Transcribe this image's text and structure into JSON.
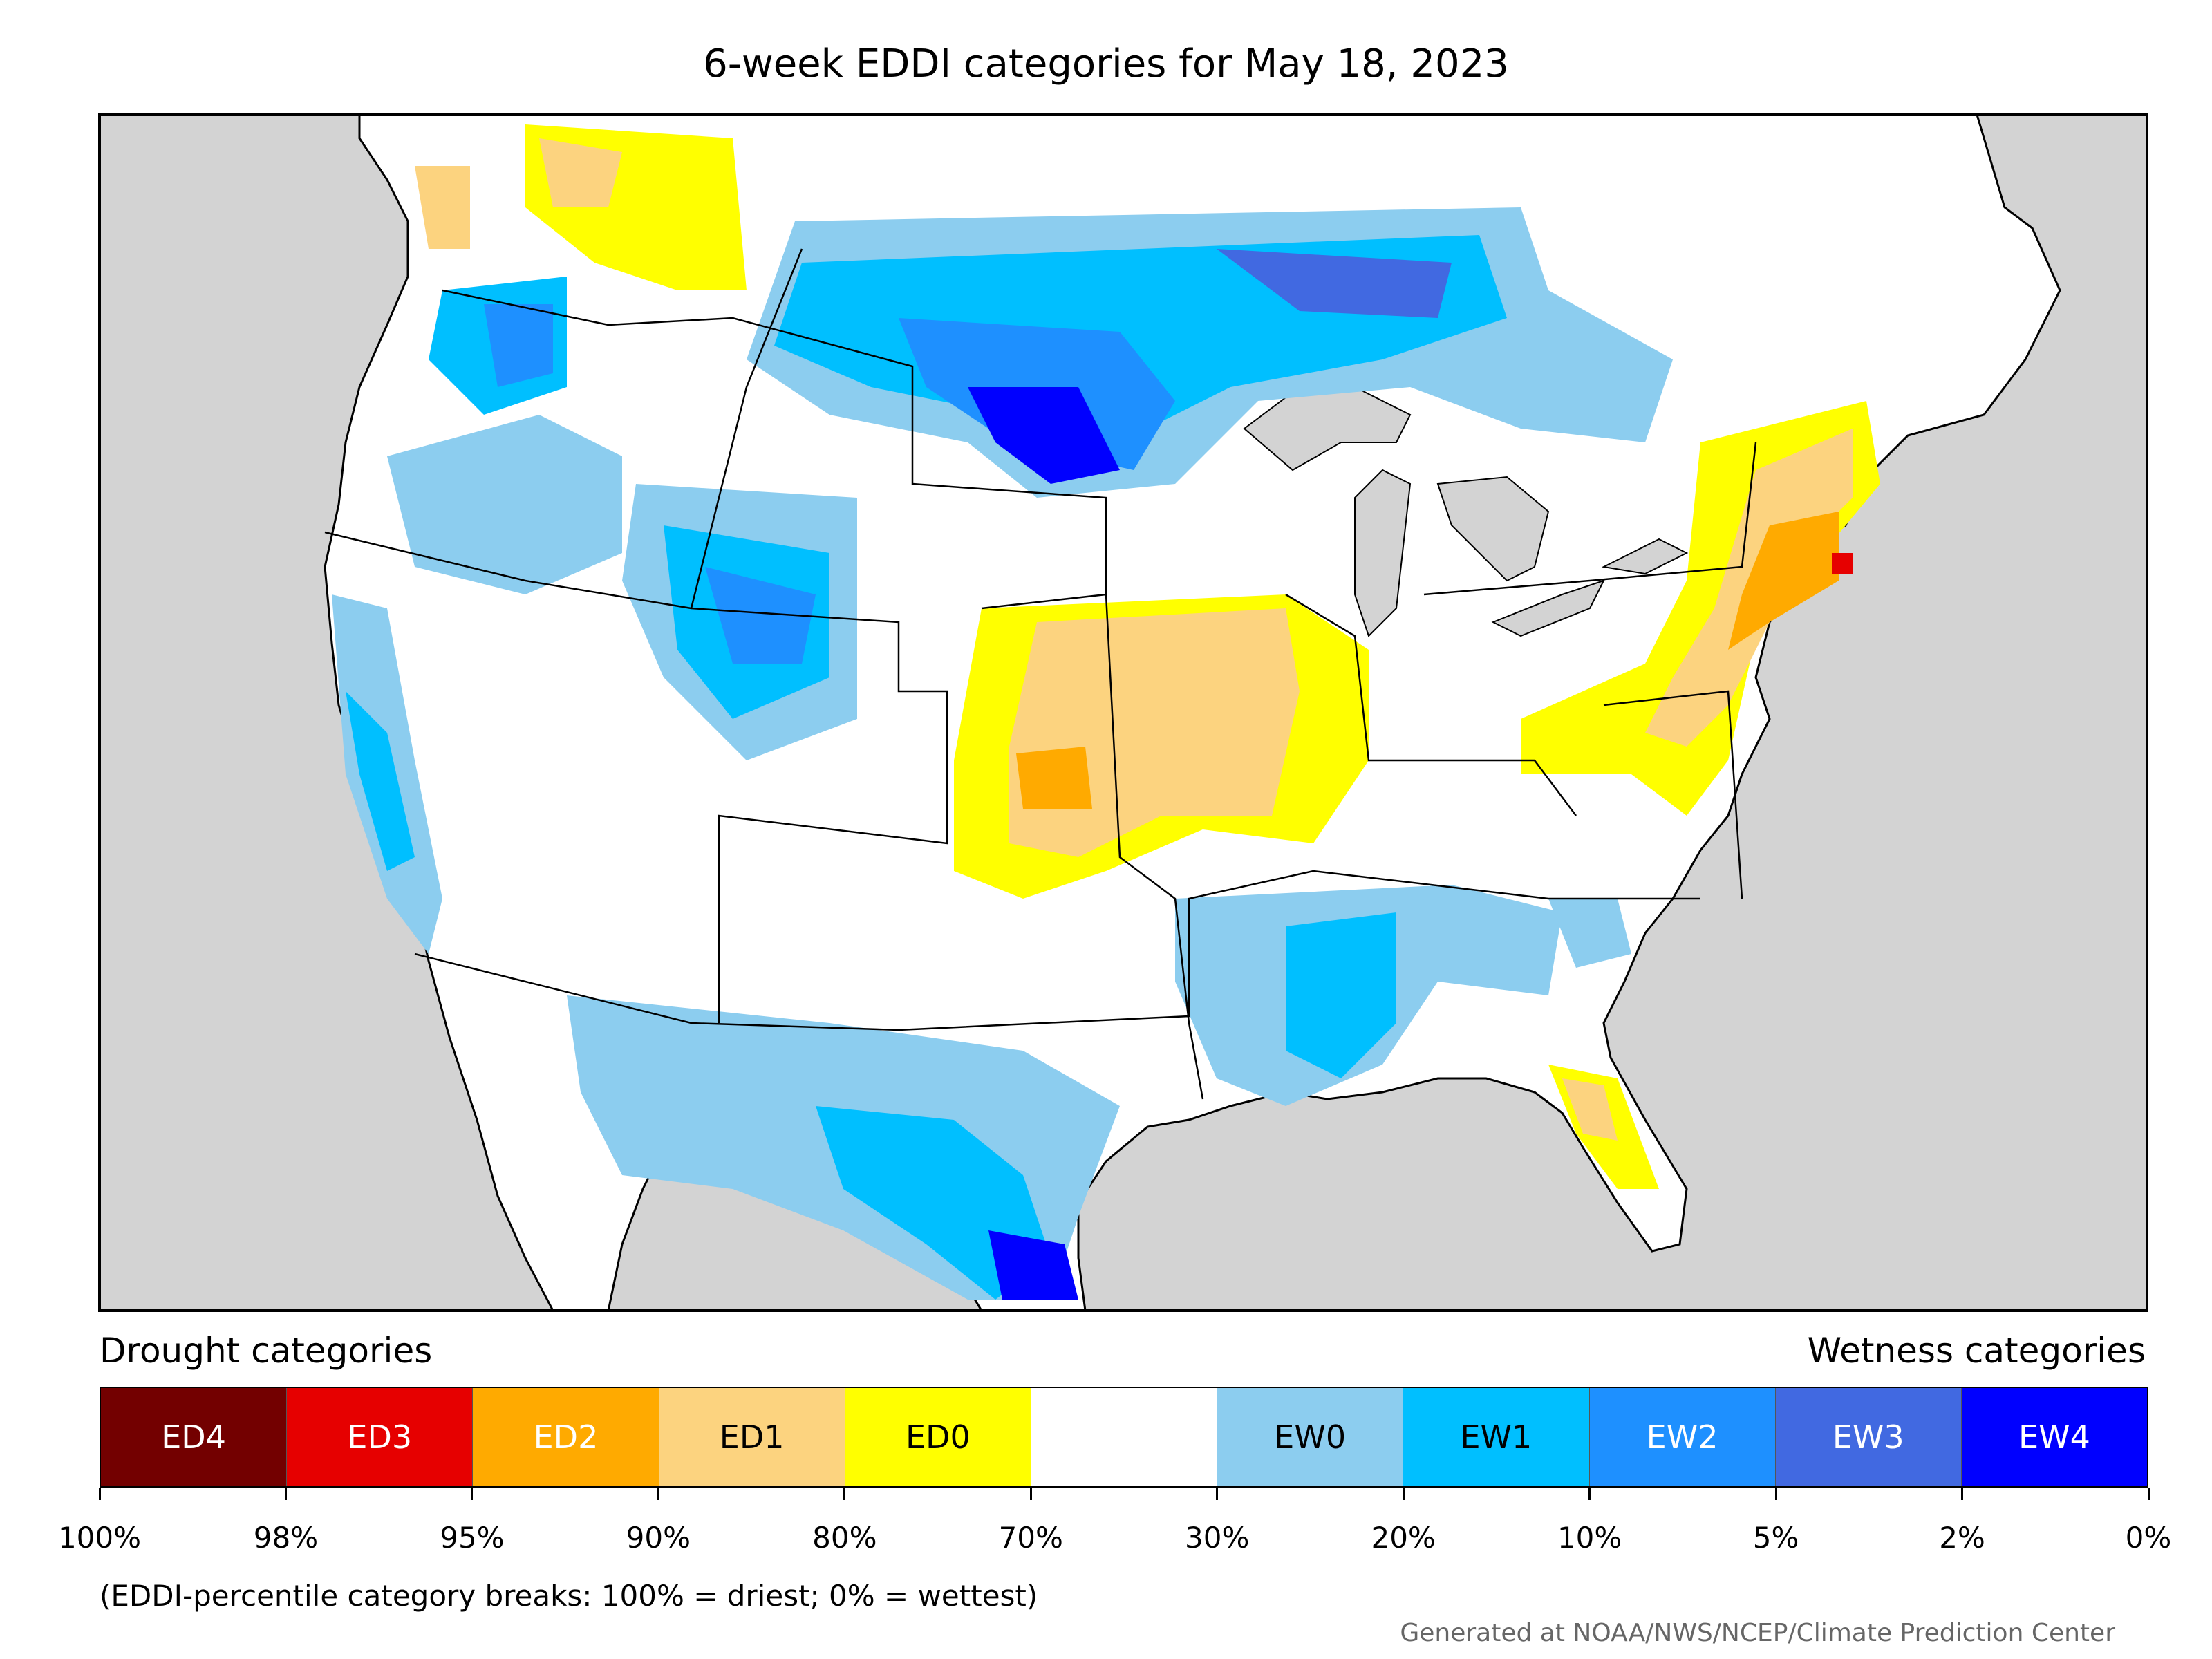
{
  "title": "6-week EDDI categories for May 18, 2023",
  "legend": {
    "drought_heading": "Drought categories",
    "wetness_heading": "Wetness categories",
    "categories": [
      {
        "label": "ED4",
        "color": "#730000",
        "text_color": "#ffffff"
      },
      {
        "label": "ED3",
        "color": "#e60000",
        "text_color": "#ffffff"
      },
      {
        "label": "ED2",
        "color": "#ffaa00",
        "text_color": "#ffffff"
      },
      {
        "label": "ED1",
        "color": "#fcd37f",
        "text_color": "#000000"
      },
      {
        "label": "ED0",
        "color": "#ffff00",
        "text_color": "#000000"
      },
      {
        "label": "",
        "color": "#ffffff",
        "text_color": "#000000"
      },
      {
        "label": "EW0",
        "color": "#8ccdef",
        "text_color": "#000000"
      },
      {
        "label": "EW1",
        "color": "#00bfff",
        "text_color": "#000000"
      },
      {
        "label": "EW2",
        "color": "#1e90ff",
        "text_color": "#ffffff"
      },
      {
        "label": "EW3",
        "color": "#4169e1",
        "text_color": "#ffffff"
      },
      {
        "label": "EW4",
        "color": "#0000ff",
        "text_color": "#ffffff"
      }
    ],
    "tick_labels": [
      "100%",
      "98%",
      "95%",
      "90%",
      "80%",
      "70%",
      "30%",
      "20%",
      "10%",
      "5%",
      "2%",
      "0%"
    ]
  },
  "note": "(EDDI-percentile category breaks: 100% = driest; 0% = wettest)",
  "credit": "Generated at NOAA/NWS/NCEP/Climate Prediction Center",
  "map": {
    "ocean_color": "#d3d3d3",
    "land_color": "#ffffff"
  }
}
